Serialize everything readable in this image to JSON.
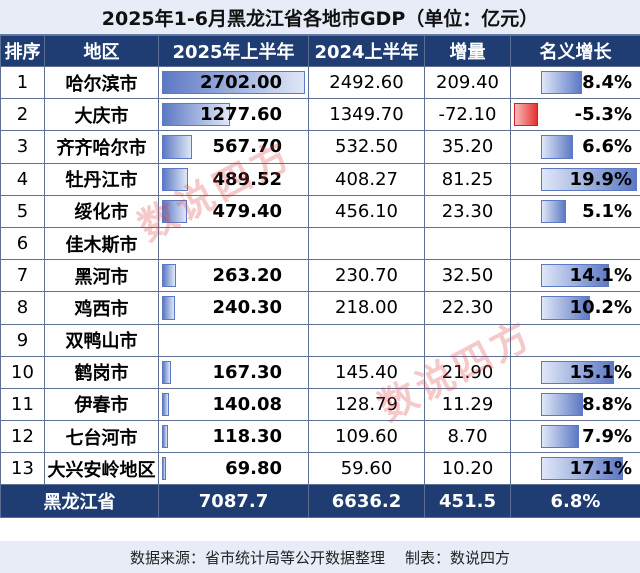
{
  "title": "2025年1-6月黑龙江省各地市GDP（单位：亿元）",
  "headers": [
    "排序",
    "地区",
    "2025年上半年",
    "2024上半年",
    "增量",
    "名义增长"
  ],
  "rows": [
    {
      "rank": "1",
      "city": "哈尔滨市",
      "h1_2025": "2702.00",
      "h1_2024": "2492.60",
      "delta": "209.40",
      "growth": "8.4%",
      "value": 2702.0,
      "growth_value": 8.4
    },
    {
      "rank": "2",
      "city": "大庆市",
      "h1_2025": "1277.60",
      "h1_2024": "1349.70",
      "delta": "-72.10",
      "growth": "-5.3%",
      "value": 1277.6,
      "growth_value": -5.3
    },
    {
      "rank": "3",
      "city": "齐齐哈尔市",
      "h1_2025": "567.70",
      "h1_2024": "532.50",
      "delta": "35.20",
      "growth": "6.6%",
      "value": 567.7,
      "growth_value": 6.6
    },
    {
      "rank": "4",
      "city": "牡丹江市",
      "h1_2025": "489.52",
      "h1_2024": "408.27",
      "delta": "81.25",
      "growth": "19.9%",
      "value": 489.52,
      "growth_value": 19.9
    },
    {
      "rank": "5",
      "city": "绥化市",
      "h1_2025": "479.40",
      "h1_2024": "456.10",
      "delta": "23.30",
      "growth": "5.1%",
      "value": 479.4,
      "growth_value": 5.1
    },
    {
      "rank": "6",
      "city": "佳木斯市",
      "h1_2025": "",
      "h1_2024": "",
      "delta": "",
      "growth": "",
      "value": null,
      "growth_value": null
    },
    {
      "rank": "7",
      "city": "黑河市",
      "h1_2025": "263.20",
      "h1_2024": "230.70",
      "delta": "32.50",
      "growth": "14.1%",
      "value": 263.2,
      "growth_value": 14.1
    },
    {
      "rank": "8",
      "city": "鸡西市",
      "h1_2025": "240.30",
      "h1_2024": "218.00",
      "delta": "22.30",
      "growth": "10.2%",
      "value": 240.3,
      "growth_value": 10.2
    },
    {
      "rank": "9",
      "city": "双鸭山市",
      "h1_2025": "",
      "h1_2024": "",
      "delta": "",
      "growth": "",
      "value": null,
      "growth_value": null
    },
    {
      "rank": "10",
      "city": "鹤岗市",
      "h1_2025": "167.30",
      "h1_2024": "145.40",
      "delta": "21.90",
      "growth": "15.1%",
      "value": 167.3,
      "growth_value": 15.1
    },
    {
      "rank": "11",
      "city": "伊春市",
      "h1_2025": "140.08",
      "h1_2024": "128.79",
      "delta": "11.29",
      "growth": "8.8%",
      "value": 140.08,
      "growth_value": 8.8
    },
    {
      "rank": "12",
      "city": "七台河市",
      "h1_2025": "118.30",
      "h1_2024": "109.60",
      "delta": "8.70",
      "growth": "7.9%",
      "value": 118.3,
      "growth_value": 7.9
    },
    {
      "rank": "13",
      "city": "大兴安岭地区",
      "h1_2025": "69.80",
      "h1_2024": "59.60",
      "delta": "10.20",
      "growth": "17.1%",
      "value": 69.8,
      "growth_value": 17.1
    }
  ],
  "total": {
    "label": "黑龙江省",
    "h1_2025": "7087.7",
    "h1_2024": "6636.2",
    "delta": "451.5",
    "growth": "6.8%"
  },
  "footer": {
    "source": "数据来源：省市统计局等公开数据整理",
    "maker": "制表：数说四方"
  },
  "watermark": "数说四方",
  "colors": {
    "header_bg": "#1f3d73",
    "bar_blue": "#5d79c4",
    "bar_red": "#e63232",
    "title_bg": "#e7ecf7"
  }
}
